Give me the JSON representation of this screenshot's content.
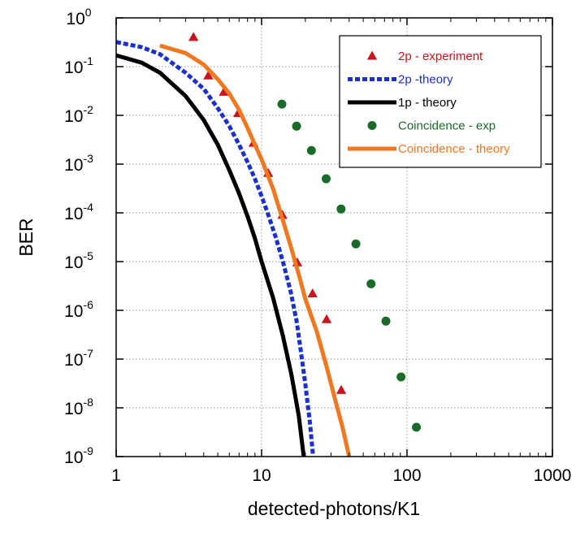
{
  "chart_data": {
    "type": "scatter",
    "xlabel": "detected-photons/K1",
    "ylabel": "BER",
    "xscale": "log",
    "yscale": "log",
    "xlim": [
      1,
      1000
    ],
    "ylim": [
      1e-09,
      1
    ],
    "grid": true,
    "legend_position": "top-right",
    "x_ticks": [
      {
        "value": 1,
        "label": "1"
      },
      {
        "value": 10,
        "label": "10"
      },
      {
        "value": 100,
        "label": "100"
      },
      {
        "value": 1000,
        "label": "1000"
      }
    ],
    "y_ticks": [
      {
        "value": 1,
        "base": "10",
        "exp": "0"
      },
      {
        "value": 0.1,
        "base": "10",
        "exp": "-1"
      },
      {
        "value": 0.01,
        "base": "10",
        "exp": "-2"
      },
      {
        "value": 0.001,
        "base": "10",
        "exp": "-3"
      },
      {
        "value": 0.0001,
        "base": "10",
        "exp": "-4"
      },
      {
        "value": 1e-05,
        "base": "10",
        "exp": "-5"
      },
      {
        "value": 1e-06,
        "base": "10",
        "exp": "-6"
      },
      {
        "value": 1e-07,
        "base": "10",
        "exp": "-7"
      },
      {
        "value": 1e-08,
        "base": "10",
        "exp": "-8"
      },
      {
        "value": 1e-09,
        "base": "10",
        "exp": "-9"
      }
    ],
    "series": [
      {
        "name": "2p - experiment",
        "kind": "marker",
        "marker": "triangle",
        "color": "#c8141e",
        "points": [
          [
            3.4,
            0.4
          ],
          [
            4.3,
            0.065
          ],
          [
            5.5,
            0.03
          ],
          [
            6.9,
            0.011
          ],
          [
            8.8,
            0.0027
          ],
          [
            11.1,
            0.00065
          ],
          [
            13.9,
            9e-05
          ],
          [
            17.6,
            9.5e-06
          ],
          [
            22.4,
            2.2e-06
          ],
          [
            28.0,
            6.5e-07
          ],
          [
            35.3,
            2.3e-08
          ]
        ]
      },
      {
        "name": "2p -theory",
        "kind": "line",
        "style": "dashed",
        "color": "#1a2fd0",
        "points": [
          [
            1.0,
            0.32
          ],
          [
            1.5,
            0.25
          ],
          [
            2.0,
            0.18
          ],
          [
            3.0,
            0.075
          ],
          [
            4.0,
            0.035
          ],
          [
            5.0,
            0.014
          ],
          [
            6.0,
            0.006
          ],
          [
            7.0,
            0.0025
          ],
          [
            8.0,
            0.0011
          ],
          [
            9.0,
            0.0005
          ],
          [
            10.0,
            0.00022
          ],
          [
            11.0,
            0.0001
          ],
          [
            12.5,
            3.2e-05
          ],
          [
            14.0,
            1e-05
          ],
          [
            15.8,
            2.5e-06
          ],
          [
            17.4,
            6e-07
          ],
          [
            18.6,
            1.5e-07
          ],
          [
            20.0,
            3e-08
          ],
          [
            21.5,
            5e-09
          ],
          [
            22.6,
            1e-09
          ]
        ]
      },
      {
        "name": "1p - theory",
        "kind": "line",
        "style": "solid",
        "color": "#000000",
        "points": [
          [
            1.0,
            0.17
          ],
          [
            1.5,
            0.12
          ],
          [
            2.0,
            0.075
          ],
          [
            3.0,
            0.025
          ],
          [
            4.0,
            0.008
          ],
          [
            5.0,
            0.0025
          ],
          [
            6.0,
            0.00075
          ],
          [
            7.0,
            0.00025
          ],
          [
            8.0,
            8.5e-05
          ],
          [
            9.0,
            3e-05
          ],
          [
            10.0,
            1e-05
          ],
          [
            12.0,
            1.8e-06
          ],
          [
            14.0,
            3e-07
          ],
          [
            16.0,
            5e-08
          ],
          [
            18.0,
            7e-09
          ],
          [
            19.5,
            1e-09
          ]
        ]
      },
      {
        "name": "Coincidence - exp",
        "kind": "marker",
        "marker": "circle",
        "color": "#1a6b28",
        "points": [
          [
            13.8,
            0.017
          ],
          [
            17.4,
            0.006
          ],
          [
            22.0,
            0.0019
          ],
          [
            27.8,
            0.0005
          ],
          [
            35.2,
            0.00012
          ],
          [
            44.5,
            2.3e-05
          ],
          [
            56.6,
            3.5e-06
          ],
          [
            71.6,
            6e-07
          ],
          [
            91.0,
            4.3e-08
          ],
          [
            116.0,
            4e-09
          ]
        ]
      },
      {
        "name": "Coincidence - theory",
        "kind": "line",
        "style": "solid",
        "color": "#f07820",
        "points": [
          [
            2.0,
            0.27
          ],
          [
            3.0,
            0.19
          ],
          [
            4.0,
            0.11
          ],
          [
            5.0,
            0.055
          ],
          [
            6.0,
            0.028
          ],
          [
            7.0,
            0.013
          ],
          [
            8.0,
            0.0055
          ],
          [
            9.0,
            0.0025
          ],
          [
            10.0,
            0.00125
          ],
          [
            12.0,
            0.00031
          ],
          [
            14.0,
            7e-05
          ],
          [
            16.0,
            1.9e-05
          ],
          [
            18.0,
            5.5e-06
          ],
          [
            20.0,
            1.7e-06
          ],
          [
            24.0,
            3.6e-07
          ],
          [
            28.0,
            7e-08
          ],
          [
            32.0,
            1.5e-08
          ],
          [
            36.0,
            4e-09
          ],
          [
            40.0,
            1e-09
          ]
        ]
      }
    ]
  }
}
